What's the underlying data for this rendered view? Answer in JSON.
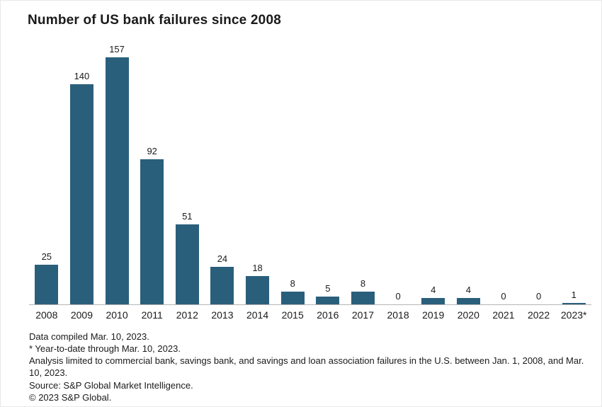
{
  "title": "Number of US bank failures since 2008",
  "colors": {
    "bar": "#2a5f7c",
    "axis_line": "#b5b5b5",
    "text": "#1a1a1a"
  },
  "chart_data": {
    "type": "bar",
    "title": "Number of US bank failures since 2008",
    "categories": [
      "2008",
      "2009",
      "2010",
      "2011",
      "2012",
      "2013",
      "2014",
      "2015",
      "2016",
      "2017",
      "2018",
      "2019",
      "2020",
      "2021",
      "2022",
      "2023*"
    ],
    "values": [
      25,
      140,
      157,
      92,
      51,
      24,
      18,
      8,
      5,
      8,
      0,
      4,
      4,
      0,
      0,
      1
    ],
    "xlabel": "",
    "ylabel": "",
    "ylim": [
      0,
      160
    ],
    "grid": false,
    "legend": "none",
    "data_labels": true
  },
  "footnotes": [
    "Data compiled Mar. 10, 2023.",
    "* Year-to-date through Mar. 10, 2023.",
    "Analysis limited to commercial bank, savings bank, and savings and loan association failures in the U.S. between Jan. 1, 2008, and Mar. 10, 2023.",
    "Source: S&P Global Market Intelligence.",
    "© 2023 S&P Global."
  ]
}
